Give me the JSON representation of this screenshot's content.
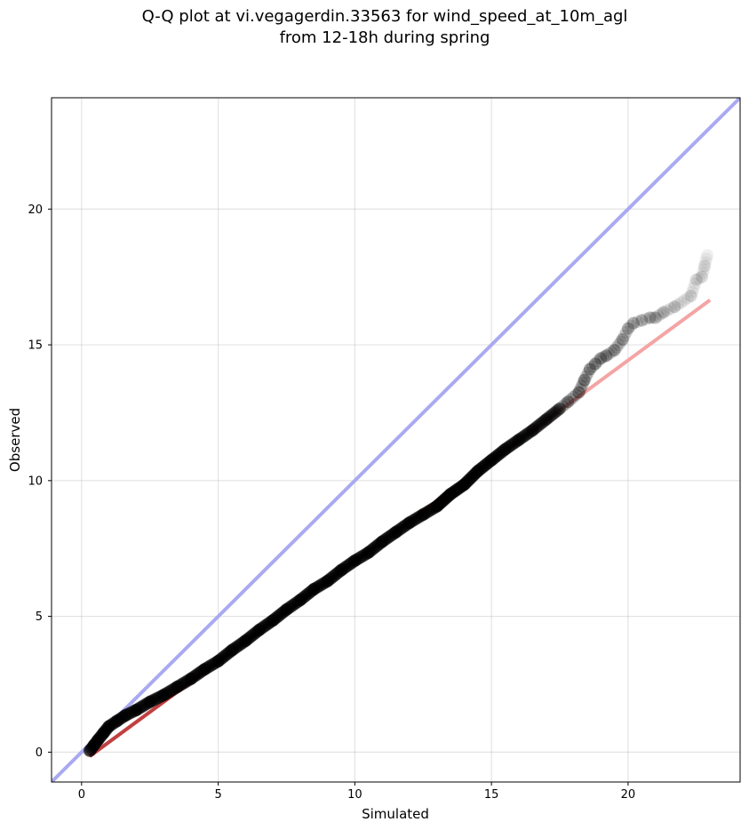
{
  "chart_data": {
    "type": "scatter",
    "title": [
      "Q-Q plot at vi.vegagerdin.33563 for wind_speed_at_10m_agl",
      "from 12-18h during spring"
    ],
    "xlabel": "Simulated",
    "ylabel": "Observed",
    "xlim": [
      -1.1,
      24.1
    ],
    "ylim": [
      -1.1,
      24.1
    ],
    "xticks": [
      0,
      5,
      10,
      15,
      20
    ],
    "yticks": [
      0,
      5,
      10,
      15,
      20
    ],
    "grid": true,
    "colors": {
      "points": "#000000",
      "identity_line": "#aaaaf2",
      "fit_line": "#f4a4a4",
      "fit_line_dense": "#c04040"
    },
    "identity_line": {
      "x": [
        -1.1,
        24.1
      ],
      "y": [
        -1.1,
        24.1
      ]
    },
    "fit_line": {
      "x": [
        0.3,
        23.0
      ],
      "y": [
        -0.15,
        16.65
      ]
    },
    "points": {
      "x": [
        0.3,
        0.45,
        0.6,
        0.8,
        1.0,
        1.3,
        1.6,
        2.0,
        2.5,
        3.0,
        3.5,
        4.0,
        4.5,
        5.0,
        5.5,
        6.0,
        6.5,
        7.0,
        7.5,
        8.0,
        8.5,
        9.0,
        9.5,
        10.0,
        10.5,
        11.0,
        11.5,
        12.0,
        12.5,
        13.0,
        13.5,
        14.0,
        14.5,
        15.0,
        15.5,
        16.0,
        16.5,
        17.0,
        17.5,
        17.8,
        18.2,
        18.4,
        18.6,
        18.8,
        19.0,
        19.2,
        19.5,
        19.8,
        20.0,
        20.2,
        20.5,
        20.8,
        21.0,
        21.3,
        21.7,
        22.3,
        22.5,
        22.7,
        22.8,
        22.9
      ],
      "y": [
        0.05,
        0.25,
        0.45,
        0.7,
        0.95,
        1.15,
        1.35,
        1.55,
        1.85,
        2.1,
        2.4,
        2.7,
        3.05,
        3.35,
        3.75,
        4.1,
        4.5,
        4.85,
        5.25,
        5.6,
        6.0,
        6.3,
        6.7,
        7.05,
        7.35,
        7.75,
        8.1,
        8.45,
        8.75,
        9.05,
        9.5,
        9.85,
        10.35,
        10.75,
        11.15,
        11.5,
        11.85,
        12.25,
        12.65,
        12.9,
        13.25,
        13.7,
        14.1,
        14.3,
        14.5,
        14.6,
        14.8,
        15.2,
        15.6,
        15.8,
        15.9,
        16.0,
        16.0,
        16.2,
        16.4,
        16.8,
        17.4,
        17.5,
        17.9,
        18.3
      ]
    }
  }
}
